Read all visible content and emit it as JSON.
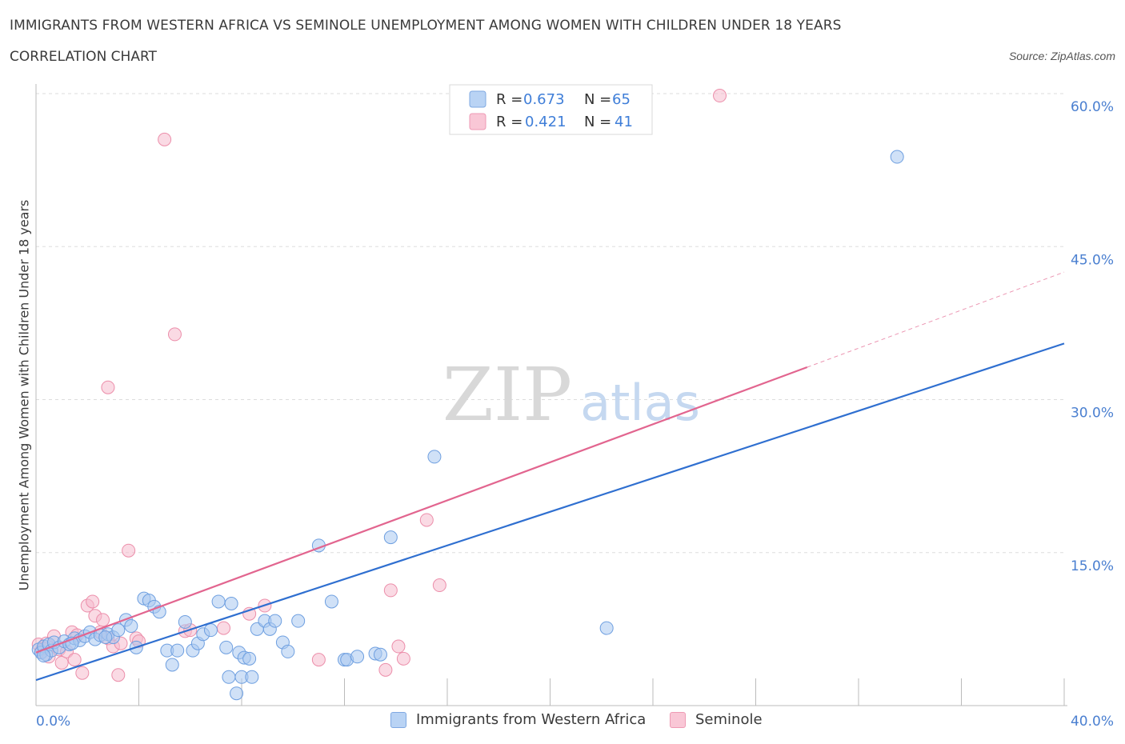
{
  "header": {
    "title": "IMMIGRANTS FROM WESTERN AFRICA VS SEMINOLE UNEMPLOYMENT AMONG WOMEN WITH CHILDREN UNDER 18 YEARS",
    "subtitle": "CORRELATION CHART",
    "source": "Source: ZipAtlas.com"
  },
  "colors": {
    "blue_fill": "#a9c8f0",
    "blue_stroke": "#6e9fe0",
    "blue_line": "#2f6fd0",
    "pink_fill": "#f6bccd",
    "pink_stroke": "#ec8eaa",
    "pink_line": "#e2658f",
    "grid": "#dddddd",
    "tick_text": "#4a7fd0"
  },
  "watermark": {
    "zip": "ZIP",
    "atlas": "atlas"
  },
  "legend": {
    "r_label": "R =",
    "n_label": "N =",
    "rows": [
      {
        "series": "blue",
        "r": "0.673",
        "n": "65"
      },
      {
        "series": "pink",
        "r": "0.421",
        "n": "41"
      }
    ]
  },
  "chart_data": {
    "type": "scatter",
    "title": "IMMIGRANTS FROM WESTERN AFRICA VS SEMINOLE UNEMPLOYMENT AMONG WOMEN WITH CHILDREN UNDER 18 YEARS",
    "subtitle": "CORRELATION CHART",
    "xlabel": "",
    "ylabel": "Unemployment Among Women with Children Under 18 years",
    "xlim": [
      0,
      40
    ],
    "ylim": [
      0,
      60
    ],
    "x_tick_labels": [
      "0.0%",
      "40.0%"
    ],
    "y_ticks": [
      15,
      30,
      45,
      60
    ],
    "y_tick_labels": [
      "15.0%",
      "30.0%",
      "45.0%",
      "60.0%"
    ],
    "grid": true,
    "legend_position": "top-center",
    "series": [
      {
        "name": "Immigrants from Western Africa",
        "color_key": "blue",
        "R": 0.673,
        "N": 65,
        "trend": {
          "x0": 0,
          "y0": 2.5,
          "x1": 40,
          "y1": 35.5,
          "x_solid_end": 40
        },
        "points": [
          [
            0.1,
            5.5
          ],
          [
            0.2,
            5.2
          ],
          [
            0.3,
            5.8
          ],
          [
            0.4,
            5.0
          ],
          [
            0.5,
            6.0
          ],
          [
            0.6,
            5.4
          ],
          [
            0.7,
            6.2
          ],
          [
            0.9,
            5.7
          ],
          [
            1.1,
            6.3
          ],
          [
            1.3,
            6.0
          ],
          [
            1.5,
            6.6
          ],
          [
            1.7,
            6.4
          ],
          [
            1.9,
            6.8
          ],
          [
            2.1,
            7.2
          ],
          [
            2.3,
            6.5
          ],
          [
            2.5,
            6.9
          ],
          [
            2.8,
            7.0
          ],
          [
            3.0,
            6.7
          ],
          [
            3.2,
            7.4
          ],
          [
            3.5,
            8.4
          ],
          [
            3.7,
            7.8
          ],
          [
            3.9,
            5.7
          ],
          [
            4.2,
            10.5
          ],
          [
            4.4,
            10.3
          ],
          [
            4.6,
            9.7
          ],
          [
            4.8,
            9.2
          ],
          [
            5.1,
            5.4
          ],
          [
            5.3,
            4.0
          ],
          [
            5.5,
            5.4
          ],
          [
            5.8,
            8.2
          ],
          [
            6.1,
            5.4
          ],
          [
            6.3,
            6.1
          ],
          [
            6.5,
            7.0
          ],
          [
            6.8,
            7.4
          ],
          [
            7.1,
            10.2
          ],
          [
            7.4,
            5.7
          ],
          [
            7.6,
            10.0
          ],
          [
            7.9,
            5.2
          ],
          [
            8.1,
            4.7
          ],
          [
            8.3,
            4.6
          ],
          [
            8.6,
            7.5
          ],
          [
            8.9,
            8.3
          ],
          [
            9.1,
            7.5
          ],
          [
            9.3,
            8.3
          ],
          [
            9.6,
            6.2
          ],
          [
            9.8,
            5.3
          ],
          [
            10.2,
            8.3
          ],
          [
            11.0,
            15.7
          ],
          [
            11.5,
            10.2
          ],
          [
            12.0,
            4.5
          ],
          [
            12.1,
            4.5
          ],
          [
            12.5,
            4.8
          ],
          [
            13.2,
            5.1
          ],
          [
            13.4,
            5.0
          ],
          [
            13.8,
            16.5
          ],
          [
            15.5,
            24.4
          ],
          [
            8.0,
            2.8
          ],
          [
            8.4,
            2.8
          ],
          [
            7.5,
            2.8
          ],
          [
            7.8,
            1.2
          ],
          [
            1.4,
            6.1
          ],
          [
            2.7,
            6.7
          ],
          [
            0.3,
            4.9
          ],
          [
            22.2,
            7.6
          ],
          [
            33.5,
            53.8
          ]
        ]
      },
      {
        "name": "Seminole",
        "color_key": "pink",
        "R": 0.421,
        "N": 41,
        "trend": {
          "x0": 0,
          "y0": 5.2,
          "x1": 40,
          "y1": 42.5,
          "x_solid_end": 30
        },
        "points": [
          [
            0.1,
            6.0
          ],
          [
            0.2,
            5.3
          ],
          [
            0.4,
            6.1
          ],
          [
            0.5,
            4.8
          ],
          [
            0.7,
            6.8
          ],
          [
            0.9,
            5.5
          ],
          [
            1.0,
            4.2
          ],
          [
            1.2,
            5.3
          ],
          [
            1.4,
            7.2
          ],
          [
            1.5,
            4.5
          ],
          [
            1.8,
            3.2
          ],
          [
            2.0,
            9.8
          ],
          [
            2.2,
            10.2
          ],
          [
            2.3,
            8.8
          ],
          [
            2.6,
            8.4
          ],
          [
            2.8,
            6.6
          ],
          [
            3.0,
            5.8
          ],
          [
            3.2,
            3.0
          ],
          [
            3.6,
            15.2
          ],
          [
            3.9,
            6.6
          ],
          [
            4.0,
            6.3
          ],
          [
            5.0,
            55.5
          ],
          [
            5.4,
            36.4
          ],
          [
            5.8,
            7.3
          ],
          [
            2.8,
            31.2
          ],
          [
            7.3,
            7.6
          ],
          [
            8.3,
            9.0
          ],
          [
            8.9,
            9.8
          ],
          [
            11.0,
            4.5
          ],
          [
            13.6,
            3.5
          ],
          [
            13.8,
            11.3
          ],
          [
            14.1,
            5.8
          ],
          [
            14.3,
            4.6
          ],
          [
            15.2,
            18.2
          ],
          [
            15.7,
            11.8
          ],
          [
            26.6,
            59.8
          ],
          [
            1.6,
            6.9
          ],
          [
            0.3,
            5.6
          ],
          [
            2.5,
            7.2
          ],
          [
            6.0,
            7.4
          ],
          [
            3.3,
            6.1
          ]
        ]
      }
    ]
  },
  "bottom_legend": {
    "items": [
      {
        "label": "Immigrants from Western Africa",
        "color_key": "blue"
      },
      {
        "label": "Seminole",
        "color_key": "pink"
      }
    ]
  }
}
